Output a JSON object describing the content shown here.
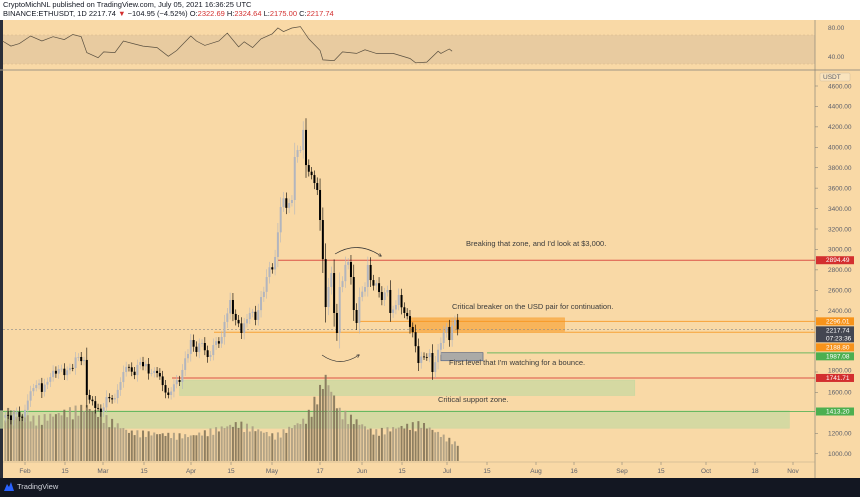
{
  "header": {
    "published": "CryptoMichNL published on TradingView.com, July 05, 2021 16:36:25 UTC",
    "symbol": "BINANCE:ETHUSDT, 1D",
    "last": "2217.74",
    "change_icon": "triangle-down-icon",
    "change": "−104.95 (−4.52%)",
    "o_label": "O:",
    "o": "2322.69",
    "h_label": "H:",
    "h": "2324.64",
    "l_label": "L:",
    "l": "2175.00",
    "c_label": "C:",
    "c": "2217.74"
  },
  "colors": {
    "background": "#f9d9a6",
    "rsi_band": "#e8cba0",
    "red": "#d32f2f",
    "orange": "#f7931a",
    "green": "#4caf50",
    "down_candle": "#000000",
    "up_candle": "#b2b5be",
    "volume": "#7d6e55"
  },
  "rsi": {
    "labels": [
      "80.00",
      "40.00"
    ],
    "series": [
      [
        "2021-01-24",
        62
      ],
      [
        "2021-01-27",
        55
      ],
      [
        "2021-01-30",
        58.5
      ],
      [
        "2021-02-03",
        69
      ],
      [
        "2021-02-07",
        62
      ],
      [
        "2021-02-11",
        68
      ],
      [
        "2021-02-15",
        64
      ],
      [
        "2021-02-18",
        71
      ],
      [
        "2021-02-21",
        68
      ],
      [
        "2021-02-23",
        46
      ],
      [
        "2021-02-27",
        39
      ],
      [
        "2021-03-01",
        47
      ],
      [
        "2021-03-05",
        46
      ],
      [
        "2021-03-08",
        62
      ],
      [
        "2021-03-12",
        58
      ],
      [
        "2021-03-15",
        55
      ],
      [
        "2021-03-20",
        53
      ],
      [
        "2021-03-24",
        41
      ],
      [
        "2021-03-27",
        49
      ],
      [
        "2021-04-01",
        69
      ],
      [
        "2021-04-03",
        62
      ],
      [
        "2021-04-06",
        56
      ],
      [
        "2021-04-11",
        62
      ],
      [
        "2021-04-14",
        73
      ],
      [
        "2021-04-18",
        54
      ],
      [
        "2021-04-20",
        61
      ],
      [
        "2021-04-23",
        53
      ],
      [
        "2021-04-26",
        65
      ],
      [
        "2021-04-30",
        72
      ],
      [
        "2021-05-02",
        80
      ],
      [
        "2021-05-04",
        75
      ],
      [
        "2021-05-07",
        80
      ],
      [
        "2021-05-10",
        82
      ],
      [
        "2021-05-13",
        65
      ],
      [
        "2021-05-17",
        49
      ],
      [
        "2021-05-18",
        36
      ],
      [
        "2021-05-22",
        35
      ],
      [
        "2021-05-25",
        47
      ],
      [
        "2021-05-30",
        45
      ],
      [
        "2021-06-02",
        50
      ],
      [
        "2021-06-06",
        45
      ],
      [
        "2021-06-12",
        45
      ],
      [
        "2021-06-18",
        38
      ],
      [
        "2021-06-20",
        32
      ],
      [
        "2021-06-24",
        33
      ],
      [
        "2021-06-28",
        48
      ],
      [
        "2021-06-29",
        45
      ],
      [
        "2021-07-02",
        51
      ],
      [
        "2021-07-03",
        48
      ]
    ]
  },
  "chart_data": {
    "type": "candlestick",
    "symbol": "ETHUSDT",
    "currency": "USDT",
    "ylim": [
      1000,
      4600
    ],
    "y_ticks": [
      "4600.00",
      "4400.00",
      "4200.00",
      "4000.00",
      "3800.00",
      "3600.00",
      "3400.00",
      "3200.00",
      "3000.00",
      "2800.00",
      "2600.00",
      "2400.00",
      "1800.00",
      "1600.00",
      "1200.00",
      "1000.00"
    ],
    "x_ticks": [
      "Feb",
      "15",
      "Mar",
      "15",
      "Apr",
      "15",
      "May",
      "17",
      "Jun",
      "15",
      "Jul",
      "15",
      "Aug",
      "16",
      "Sep",
      "15",
      "Oct",
      "18",
      "Nov"
    ],
    "closes": [
      [
        "2021-01-25",
        1380
      ],
      [
        "2021-01-27",
        1330
      ],
      [
        "2021-01-29",
        1410
      ],
      [
        "2021-01-31",
        1360
      ],
      [
        "2021-02-02",
        1520
      ],
      [
        "2021-02-04",
        1643
      ],
      [
        "2021-02-06",
        1690
      ],
      [
        "2021-02-07",
        1605
      ],
      [
        "2021-02-10",
        1750
      ],
      [
        "2021-02-13",
        1830
      ],
      [
        "2021-02-15",
        1770
      ],
      [
        "2021-02-17",
        1840
      ],
      [
        "2021-02-20",
        1947
      ],
      [
        "2021-02-22",
        1918
      ],
      [
        "2021-02-23",
        1575
      ],
      [
        "2021-02-26",
        1448
      ],
      [
        "2021-02-28",
        1408
      ],
      [
        "2021-03-02",
        1555
      ],
      [
        "2021-03-05",
        1545
      ],
      [
        "2021-03-06",
        1625
      ],
      [
        "2021-03-09",
        1850
      ],
      [
        "2021-03-12",
        1770
      ],
      [
        "2021-03-14",
        1898
      ],
      [
        "2021-03-18",
        1790
      ],
      [
        "2021-03-20",
        1790
      ],
      [
        "2021-03-22",
        1672
      ],
      [
        "2021-03-24",
        1575
      ],
      [
        "2021-03-26",
        1680
      ],
      [
        "2021-03-28",
        1703
      ],
      [
        "2021-03-29",
        1820
      ],
      [
        "2021-04-01",
        2113
      ],
      [
        "2021-04-03",
        1996
      ],
      [
        "2021-04-05",
        2084
      ],
      [
        "2021-04-07",
        1947
      ],
      [
        "2021-04-09",
        2064
      ],
      [
        "2021-04-12",
        2143
      ],
      [
        "2021-04-13",
        2290
      ],
      [
        "2021-04-15",
        2505
      ],
      [
        "2021-04-17",
        2310
      ],
      [
        "2021-04-19",
        2182
      ],
      [
        "2021-04-22",
        2378
      ],
      [
        "2021-04-24",
        2310
      ],
      [
        "2021-04-26",
        2534
      ],
      [
        "2021-04-28",
        2730
      ],
      [
        "2021-05-01",
        2926
      ],
      [
        "2021-05-03",
        3415
      ],
      [
        "2021-05-07",
        3484
      ],
      [
        "2021-05-08",
        3905
      ],
      [
        "2021-05-10",
        3973
      ],
      [
        "2021-05-11",
        4170
      ],
      [
        "2021-05-12",
        3826
      ],
      [
        "2021-05-14",
        3728
      ],
      [
        "2021-05-15",
        3650
      ],
      [
        "2021-05-16",
        3582
      ],
      [
        "2021-05-17",
        3288
      ],
      [
        "2021-05-19",
        2436
      ],
      [
        "2021-05-21",
        2769
      ],
      [
        "2021-05-22",
        2378
      ],
      [
        "2021-05-23",
        2182
      ],
      [
        "2021-05-24",
        2632
      ],
      [
        "2021-05-27",
        2877
      ],
      [
        "2021-05-28",
        2730
      ],
      [
        "2021-05-29",
        2407
      ],
      [
        "2021-05-30",
        2280
      ],
      [
        "2021-05-31",
        2534
      ],
      [
        "2021-06-02",
        2632
      ],
      [
        "2021-06-03",
        2848
      ],
      [
        "2021-06-04",
        2700
      ],
      [
        "2021-06-07",
        2583
      ],
      [
        "2021-06-08",
        2505
      ],
      [
        "2021-06-10",
        2603
      ],
      [
        "2021-06-11",
        2378
      ],
      [
        "2021-06-13",
        2456
      ],
      [
        "2021-06-14",
        2554
      ],
      [
        "2021-06-16",
        2378
      ],
      [
        "2021-06-18",
        2241
      ],
      [
        "2021-06-19",
        2190
      ],
      [
        "2021-06-21",
        1888
      ],
      [
        "2021-06-23",
        1947
      ],
      [
        "2021-06-25",
        1986
      ],
      [
        "2021-06-26",
        1800
      ],
      [
        "2021-06-29",
        2084
      ],
      [
        "2021-07-01",
        2241
      ],
      [
        "2021-07-02",
        2113
      ],
      [
        "2021-07-04",
        2310
      ],
      [
        "2021-07-05",
        2217.74
      ]
    ],
    "volume_relative": [
      [
        "2021-01-25",
        0.6
      ],
      [
        "2021-02-05",
        0.5
      ],
      [
        "2021-02-23",
        0.65
      ],
      [
        "2021-03-10",
        0.35
      ],
      [
        "2021-04-01",
        0.3
      ],
      [
        "2021-04-18",
        0.45
      ],
      [
        "2021-05-01",
        0.3
      ],
      [
        "2021-05-12",
        0.5
      ],
      [
        "2021-05-19",
        1.0
      ],
      [
        "2021-05-24",
        0.6
      ],
      [
        "2021-06-05",
        0.35
      ],
      [
        "2021-06-22",
        0.45
      ],
      [
        "2021-07-05",
        0.2
      ]
    ],
    "price_tags": [
      {
        "value": "2894.49",
        "color": "#d32f2f"
      },
      {
        "value": "2296.01",
        "color": "#f7931a"
      },
      {
        "value": "2217.74",
        "sub": "07:23:36",
        "color": "#434651"
      },
      {
        "value": "2188.80",
        "color": "#f7931a"
      },
      {
        "value": "1987.08",
        "color": "#4caf50"
      },
      {
        "value": "1741.71",
        "color": "#d32f2f"
      },
      {
        "value": "1413.20",
        "color": "#4caf50"
      }
    ],
    "zones": [
      {
        "name": "breaker-zone",
        "from": "2021-06-18",
        "to": "2021-08-12",
        "low": 2200,
        "high": 2330,
        "color": "#f7a740"
      },
      {
        "name": "bounce-level",
        "from": "2021-06-29",
        "to": "2021-07-14",
        "low": 1910,
        "high": 1990,
        "color": "#8a96a8"
      },
      {
        "name": "critical-support",
        "from": "2021-03-28",
        "to": "2021-09-06",
        "low": 1570,
        "high": 1720,
        "color": "#c8d8a0"
      },
      {
        "name": "lower-support",
        "from": "2021-01-23",
        "to": "2021-10-31",
        "low": 1250,
        "high": 1420,
        "color": "#c8d8a0"
      }
    ],
    "annotations": [
      "Breaking that zone, and I'd look at $3,000.",
      "Critical breaker on the USD pair for continuation.",
      "First level that I'm watching for a bounce.",
      "Critical support zone."
    ]
  },
  "footer": {
    "brand": "TradingView",
    "logo_icon": "tradingview-logo-icon"
  }
}
